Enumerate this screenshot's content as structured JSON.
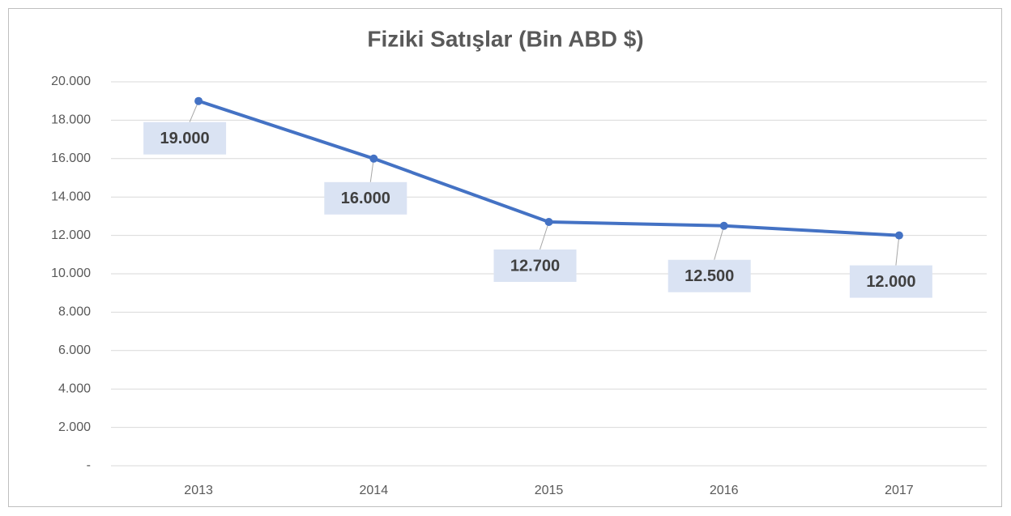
{
  "chart_data": {
    "type": "line",
    "title": "Fiziki Satışlar (Bin ABD $)",
    "categories": [
      "2013",
      "2014",
      "2015",
      "2016",
      "2017"
    ],
    "series": [
      {
        "name": "Fiziki Satışlar",
        "color": "#4472c4",
        "values": [
          19000,
          16000,
          12700,
          12500,
          12000
        ],
        "value_labels": [
          "19.000",
          "16.000",
          "12.700",
          "12.500",
          "12.000"
        ]
      }
    ],
    "ylim": [
      0,
      20000
    ],
    "yticks": [
      {
        "value": 0,
        "label": "-"
      },
      {
        "value": 2000,
        "label": "2.000"
      },
      {
        "value": 4000,
        "label": "4.000"
      },
      {
        "value": 6000,
        "label": "6.000"
      },
      {
        "value": 8000,
        "label": "8.000"
      },
      {
        "value": 10000,
        "label": "10.000"
      },
      {
        "value": 12000,
        "label": "12.000"
      },
      {
        "value": 14000,
        "label": "14.000"
      },
      {
        "value": 16000,
        "label": "16.000"
      },
      {
        "value": 18000,
        "label": "18.000"
      },
      {
        "value": 20000,
        "label": "20.000"
      }
    ],
    "grid": true
  }
}
